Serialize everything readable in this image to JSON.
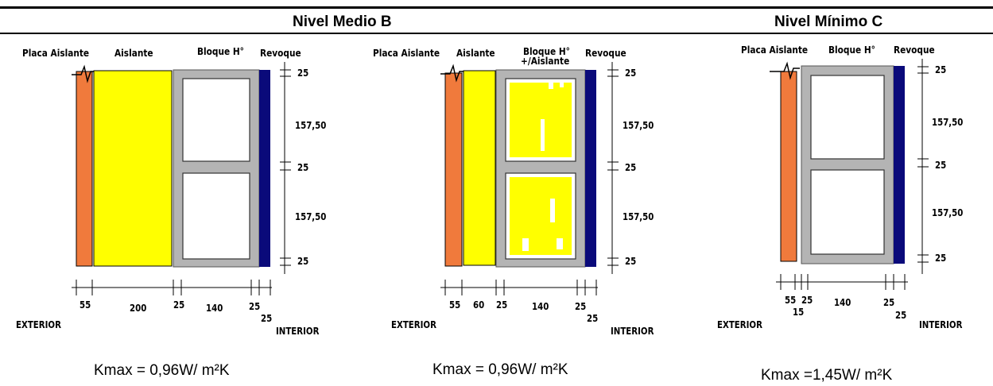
{
  "headers": {
    "b": "Nivel Medio B",
    "c": "Nivel Mínimo C"
  },
  "panel_b": {
    "layers": [
      "Placa Aislante",
      "Aislante",
      "Bloque H°",
      "Revoque"
    ],
    "right_dims": [
      "25",
      "157,50",
      "25",
      "157,50",
      "25"
    ],
    "bottom_dims": [
      "55",
      "200",
      "25",
      "140",
      "25",
      "25"
    ],
    "exterior": "EXTERIOR",
    "interior": "INTERIOR",
    "kmax": "Kmax = 0,96W/ m²K"
  },
  "panel_b2": {
    "layers": [
      "Placa Aislante",
      "Aislante",
      "Bloque H°",
      "+/Aislante",
      "Revoque"
    ],
    "right_dims": [
      "25",
      "157,50",
      "25",
      "157,50",
      "25"
    ],
    "bottom_dims": [
      "55",
      "60",
      "25",
      "140",
      "25",
      "25"
    ],
    "exterior": "EXTERIOR",
    "interior": "INTERIOR",
    "kmax": "Kmax = 0,96W/ m²K"
  },
  "panel_c": {
    "layers": [
      "Placa Aislante",
      "Bloque H°",
      "Revoque"
    ],
    "right_dims": [
      "25",
      "157,50",
      "25",
      "157,50",
      "25"
    ],
    "bottom_dims": [
      "55",
      "25",
      "15",
      "140",
      "25",
      "25"
    ],
    "exterior": "EXTERIOR",
    "interior": "INTERIOR",
    "kmax": "Kmax =1,45W/ m²K"
  },
  "colors": {
    "placa": "#f07a3c",
    "aislante": "#ffff00",
    "bloque": "#b4b4b4",
    "revoque": "#0a0a7a"
  }
}
